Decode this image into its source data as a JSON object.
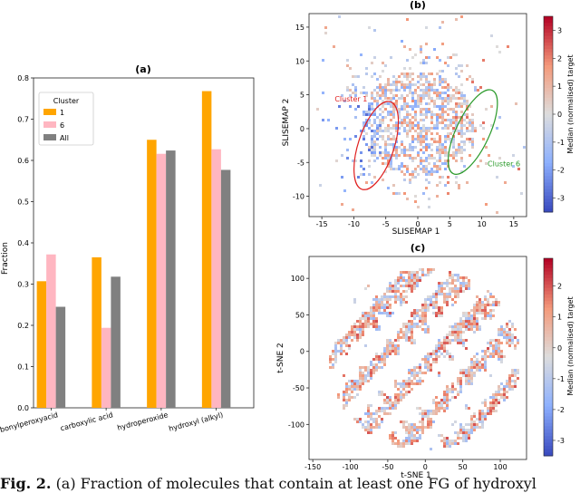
{
  "chart_data": [
    {
      "panel": "a",
      "type": "bar",
      "title": "(a)",
      "xlabel": "",
      "ylabel": "Fraction",
      "ylim": [
        0,
        0.8
      ],
      "yticks": [
        "0.0",
        "0.1",
        "0.2",
        "0.3",
        "0.4",
        "0.5",
        "0.6",
        "0.7",
        "0.8"
      ],
      "categories": [
        "carbonylperoxyacid",
        "carboxylic acid",
        "hydroperoxide",
        "hydroxyl (alkyl)"
      ],
      "legend_title": "Cluster",
      "legend_position": "top-left",
      "series": [
        {
          "name": "1",
          "color": "#ffa500",
          "values": [
            0.307,
            0.365,
            0.65,
            0.768
          ]
        },
        {
          "name": "6",
          "color": "#ffb6c1",
          "values": [
            0.372,
            0.194,
            0.616,
            0.627
          ]
        },
        {
          "name": "All",
          "color": "#808080",
          "values": [
            0.245,
            0.318,
            0.624,
            0.577
          ]
        }
      ]
    },
    {
      "panel": "b",
      "type": "heatmap",
      "title": "(b)",
      "xlabel": "SLISEMAP 1",
      "ylabel": "SLISEMAP 2",
      "xlim": [
        -17,
        17
      ],
      "ylim": [
        -13,
        17
      ],
      "xticks": [
        "-15",
        "-10",
        "-5",
        "0",
        "5",
        "10",
        "15"
      ],
      "yticks": [
        "-10",
        "-5",
        "0",
        "5",
        "10",
        "15"
      ],
      "colorbar_label": "Median (normalised) target",
      "colorbar_ticks": [
        "-3",
        "-2",
        "-1",
        "0",
        "1",
        "2",
        "3"
      ],
      "colorbar_range": [
        -3.5,
        3.5
      ],
      "annotations": [
        {
          "text": "Cluster 1",
          "color": "#e02020",
          "ellipse_center": [
            -6.5,
            -2.5
          ],
          "ellipse_axes": [
            2.8,
            6.8
          ],
          "rotation": 18
        },
        {
          "text": "Cluster 6",
          "color": "#2a9a2a",
          "ellipse_center": [
            8.6,
            -0.5
          ],
          "ellipse_axes": [
            2.6,
            6.8
          ],
          "rotation": 25
        }
      ]
    },
    {
      "panel": "c",
      "type": "heatmap",
      "title": "(c)",
      "xlabel": "t-SNE 1",
      "ylabel": "t-SNE 2",
      "xlim": [
        -155,
        135
      ],
      "ylim": [
        -148,
        130
      ],
      "xticks": [
        "-150",
        "-100",
        "-50",
        "0",
        "50",
        "100"
      ],
      "yticks": [
        "-100",
        "-50",
        "0",
        "50",
        "100"
      ],
      "colorbar_label": "Median (normalised) target",
      "colorbar_ticks": [
        "-3",
        "-2",
        "-1",
        "0",
        "1",
        "2"
      ],
      "colorbar_range": [
        -3.5,
        2.9
      ]
    }
  ],
  "caption": {
    "label": "Fig. 2.",
    "text": "(a) Fraction of molecules that contain at least one FG of hydroxyl"
  }
}
